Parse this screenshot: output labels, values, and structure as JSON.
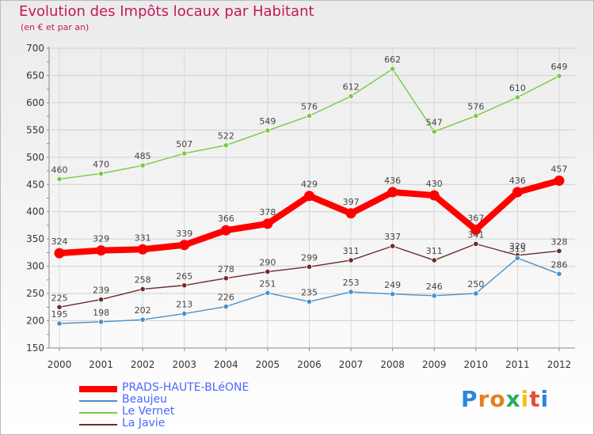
{
  "title": "Evolution des Impôts locaux par Habitant",
  "subtitle": "(en € et par an)",
  "brand": {
    "letters": [
      "P",
      "r",
      "o",
      "x",
      "i",
      "t",
      "i"
    ],
    "colors": [
      "#2e86de",
      "#e67e22",
      "#e67e22",
      "#27ae60",
      "#f1c40f",
      "#e74c3c",
      "#2e86de"
    ]
  },
  "chart_data": {
    "type": "line",
    "title": "Evolution des Impôts locaux par Habitant",
    "ylabel": "(en € et par an)",
    "x": [
      "2000",
      "2001",
      "2002",
      "2003",
      "2004",
      "2005",
      "2006",
      "2007",
      "2008",
      "2009",
      "2010",
      "2011",
      "2012"
    ],
    "ylim": [
      150,
      700
    ],
    "yticks": [
      150,
      200,
      250,
      300,
      350,
      400,
      450,
      500,
      550,
      600,
      650,
      700
    ],
    "series": [
      {
        "name": "PRADS-HAUTE-BLéONE",
        "color": "#ff0000",
        "values": [
          324,
          329,
          331,
          339,
          366,
          378,
          429,
          397,
          436,
          430,
          367,
          436,
          457
        ]
      },
      {
        "name": "Beaujeu",
        "color": "#4a90c8",
        "values": [
          195,
          198,
          202,
          213,
          226,
          251,
          235,
          253,
          249,
          246,
          250,
          315,
          286
        ]
      },
      {
        "name": "Le Vernet",
        "color": "#7ac943",
        "values": [
          460,
          470,
          485,
          507,
          522,
          549,
          576,
          612,
          662,
          547,
          576,
          610,
          649
        ]
      },
      {
        "name": "La Javie",
        "color": "#6e2b2b",
        "values": [
          225,
          239,
          258,
          265,
          278,
          290,
          299,
          311,
          337,
          311,
          341,
          320,
          328
        ]
      }
    ]
  }
}
